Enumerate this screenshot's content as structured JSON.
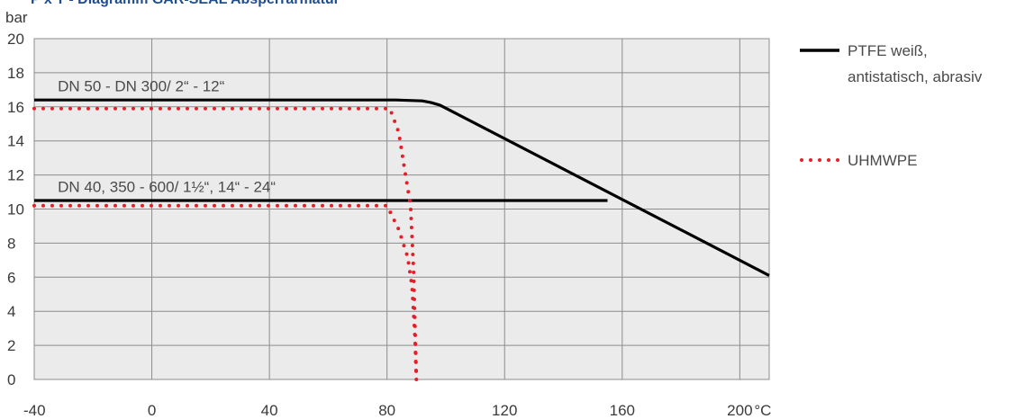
{
  "title": "P x T - Diagramm GAR-SEAL Absperrarmatur",
  "chart_data": {
    "type": "line",
    "ylabel": "bar",
    "xunit": "°C",
    "xlim": [
      -40,
      210
    ],
    "ylim": [
      0,
      20
    ],
    "xticks": [
      -40,
      0,
      40,
      80,
      120,
      160,
      200
    ],
    "yticks": [
      0,
      2,
      4,
      6,
      8,
      10,
      12,
      14,
      16,
      18,
      20
    ],
    "grid": true,
    "legend": "right",
    "series": [
      {
        "name": "PTFE weiß, antistatisch, abrasiv",
        "style": "solid",
        "color": "#000000",
        "segments": [
          [
            [
              -40,
              16.4
            ],
            [
              83,
              16.4
            ],
            [
              92,
              16.35
            ],
            [
              95,
              16.25
            ],
            [
              98,
              16.1
            ],
            [
              210,
              6.1
            ]
          ],
          [
            [
              -40,
              10.5
            ],
            [
              155,
              10.5
            ]
          ]
        ]
      },
      {
        "name": "UHMWPE",
        "style": "dotted",
        "color": "#e3202a",
        "segments": [
          [
            [
              -40,
              15.9
            ],
            [
              81,
              15.9
            ],
            [
              84,
              14.5
            ],
            [
              86,
              12.3
            ],
            [
              88,
              10.2
            ],
            [
              89,
              6.5
            ],
            [
              90,
              0
            ]
          ],
          [
            [
              -40,
              10.2
            ],
            [
              80,
              10.2
            ],
            [
              84,
              8.8
            ],
            [
              87,
              7.2
            ],
            [
              88.5,
              5.5
            ],
            [
              89.5,
              2.5
            ],
            [
              90,
              0
            ]
          ]
        ]
      }
    ],
    "annotations": [
      {
        "text": "DN 50 - DN 300/ 2“ - 12“",
        "x": -32,
        "y": 16.9
      },
      {
        "text": "DN 40, 350 - 600/ 1½“, 14“ - 24“",
        "x": -32,
        "y": 11.0
      }
    ]
  },
  "legend_items": [
    {
      "lines": [
        "PTFE weiß,",
        "antistatisch, abrasiv"
      ],
      "style": "solid",
      "color": "#000000"
    },
    {
      "lines": [
        "UHMWPE"
      ],
      "style": "dotted",
      "color": "#e3202a"
    }
  ]
}
